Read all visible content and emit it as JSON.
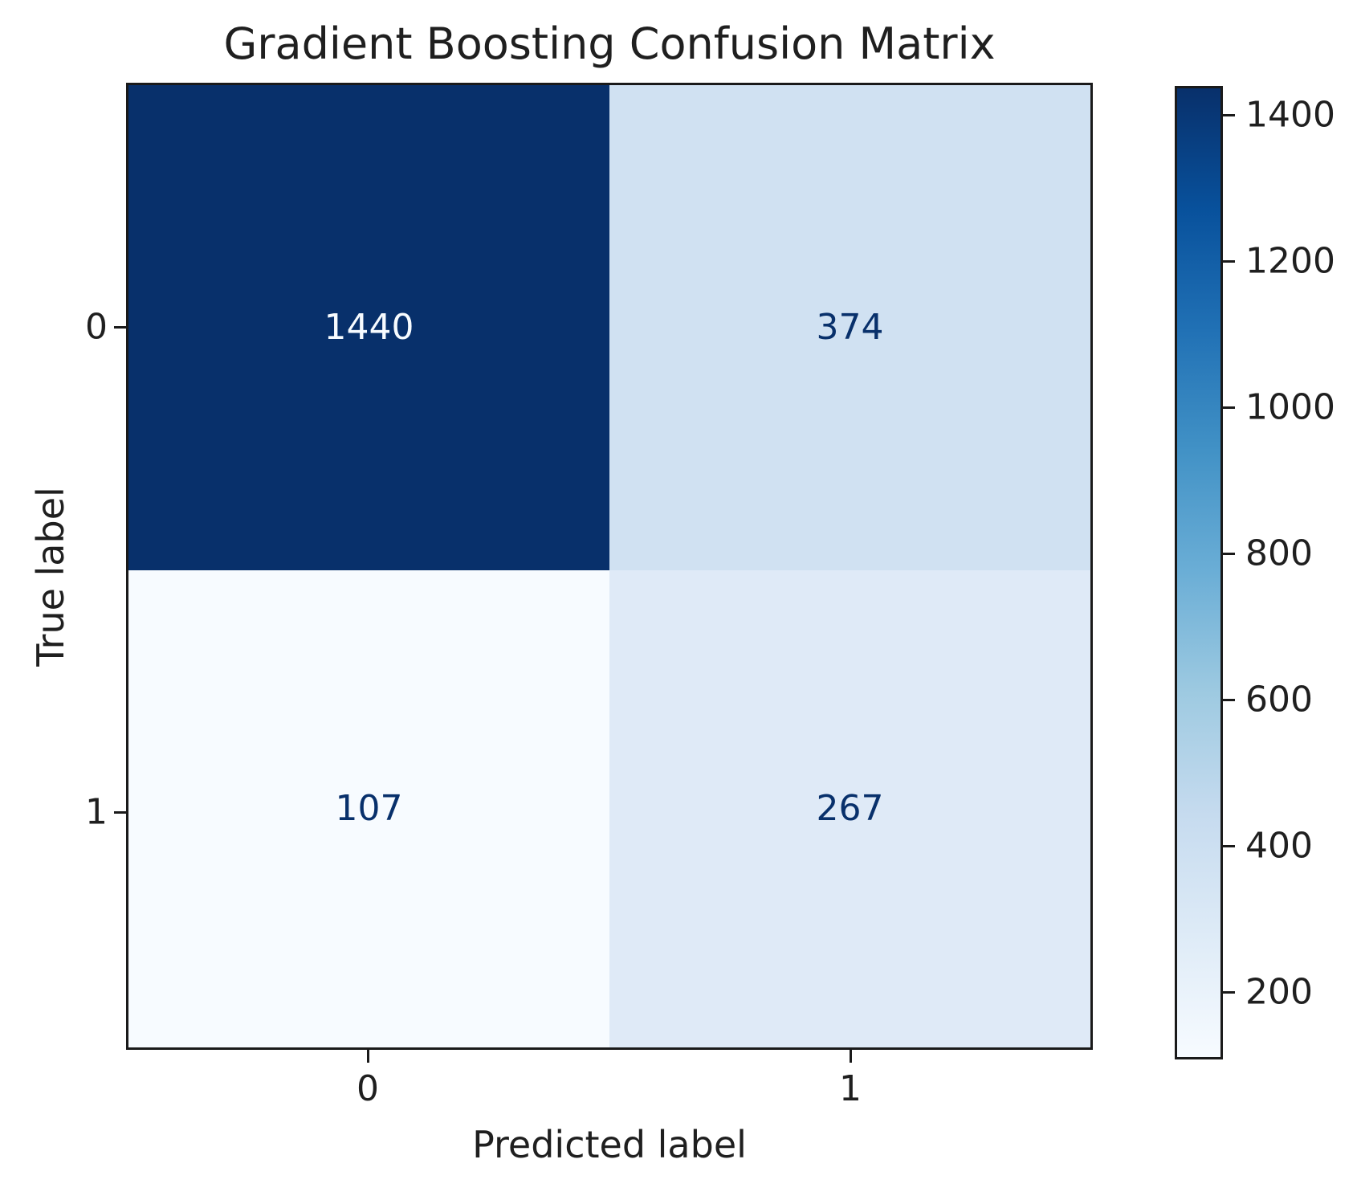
{
  "chart_data": {
    "type": "heatmap",
    "title": "Gradient Boosting Confusion Matrix",
    "xlabel": "Predicted label",
    "ylabel": "True label",
    "x_tick_labels": [
      "0",
      "1"
    ],
    "y_tick_labels": [
      "0",
      "1"
    ],
    "matrix": [
      [
        1440,
        374
      ],
      [
        107,
        267
      ]
    ],
    "cells": [
      {
        "value": "1440",
        "bg": "#08306b",
        "fg": "#f7fbff"
      },
      {
        "value": "374",
        "bg": "#d0e1f2",
        "fg": "#08306b"
      },
      {
        "value": "107",
        "bg": "#f7fbff",
        "fg": "#08306b"
      },
      {
        "value": "267",
        "bg": "#dfeaf7",
        "fg": "#08306b"
      }
    ],
    "colormap": "Blues",
    "colorbar": {
      "vmin": 107,
      "vmax": 1440,
      "color_min": "#f7fbff",
      "color_max": "#08306b",
      "ticks": [
        "1400",
        "1200",
        "1000",
        "800",
        "600",
        "400",
        "200"
      ]
    },
    "legend_position": "right-colorbar",
    "grid": false
  }
}
